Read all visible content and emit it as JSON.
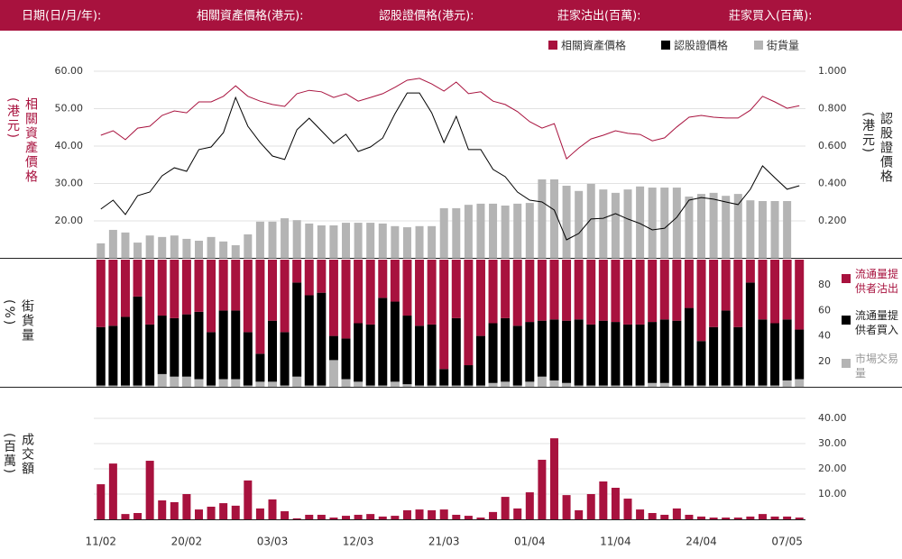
{
  "header": {
    "fields": [
      "日期(日/月/年):",
      "相關資產價格(港元):",
      "認股證價格(港元):",
      "莊家沽出(百萬):",
      "莊家買入(百萬):"
    ]
  },
  "chart_data": [
    {
      "type": "combo",
      "ylabel": "相關資產價格(港元)",
      "y2label": "認股證價格(港元)",
      "ylim": [
        10,
        60
      ],
      "yticks": [
        {
          "value": 20,
          "label": "20.00"
        },
        {
          "value": 30,
          "label": "30.00"
        },
        {
          "value": 40,
          "label": "40.00"
        },
        {
          "value": 50,
          "label": "50.00"
        },
        {
          "value": 60,
          "label": "60.00"
        }
      ],
      "y2lim": [
        0,
        1
      ],
      "y2ticks": [
        {
          "value": 0.2,
          "label": "0.200"
        },
        {
          "value": 0.4,
          "label": "0.400"
        },
        {
          "value": 0.6,
          "label": "0.600"
        },
        {
          "value": 0.8,
          "label": "0.800"
        },
        {
          "value": 1,
          "label": "1.000"
        }
      ],
      "grid": true,
      "series": [
        {
          "name": "相關資產價格",
          "type": "line",
          "axis": "y",
          "color": "#a8123e",
          "values": [
            42.9,
            44.1,
            41.7,
            44.8,
            45.3,
            48.2,
            49.4,
            48.9,
            51.8,
            51.8,
            53.3,
            56.1,
            53.3,
            52.0,
            51.1,
            50.6,
            54.0,
            54.9,
            54.5,
            53.0,
            54.0,
            52.0,
            53.0,
            54.0,
            55.7,
            57.6,
            58.1,
            56.6,
            54.7,
            57.1,
            54.0,
            54.5,
            52.0,
            51.1,
            49.2,
            46.5,
            44.8,
            46.0,
            36.6,
            39.5,
            41.9,
            42.9,
            44.1,
            43.4,
            43.1,
            41.4,
            42.2,
            45.1,
            47.7,
            48.2,
            47.7,
            47.5,
            47.5,
            49.6,
            53.3,
            51.8,
            50.1,
            50.8
          ]
        },
        {
          "name": "認股證價格",
          "type": "line",
          "axis": "y2",
          "color": "#000000",
          "values": [
            0.263,
            0.311,
            0.234,
            0.335,
            0.354,
            0.441,
            0.484,
            0.465,
            0.581,
            0.595,
            0.672,
            0.86,
            0.706,
            0.619,
            0.547,
            0.528,
            0.687,
            0.749,
            0.682,
            0.614,
            0.663,
            0.571,
            0.595,
            0.643,
            0.773,
            0.884,
            0.884,
            0.778,
            0.619,
            0.759,
            0.581,
            0.581,
            0.475,
            0.436,
            0.354,
            0.311,
            0.301,
            0.258,
            0.099,
            0.133,
            0.21,
            0.214,
            0.239,
            0.21,
            0.186,
            0.152,
            0.161,
            0.219,
            0.311,
            0.325,
            0.316,
            0.301,
            0.287,
            0.369,
            0.494,
            0.431,
            0.369,
            0.388
          ]
        },
        {
          "name": "街貨量",
          "type": "bar",
          "axis": "y",
          "color": "#b4b4b4",
          "values": [
            14.0,
            17.6,
            16.9,
            14.2,
            16.1,
            15.7,
            16.1,
            15.2,
            14.7,
            15.7,
            14.5,
            13.5,
            16.4,
            19.8,
            19.8,
            20.7,
            20.2,
            19.3,
            18.8,
            18.8,
            19.5,
            19.5,
            19.5,
            19.3,
            18.6,
            18.3,
            18.6,
            18.6,
            23.4,
            23.4,
            24.3,
            24.6,
            24.6,
            24.1,
            24.6,
            24.8,
            31.1,
            31.1,
            29.4,
            28.0,
            29.9,
            28.4,
            27.5,
            28.4,
            29.2,
            28.9,
            28.9,
            28.9,
            26.5,
            27.2,
            27.5,
            26.7,
            27.2,
            25.5,
            25.3,
            25.3,
            25.3,
            null
          ]
        }
      ]
    },
    {
      "type": "stacked-bar",
      "ylabel": "街貨量(%)",
      "ylim": [
        0,
        100
      ],
      "yticks": [
        20,
        40,
        60,
        80
      ],
      "series": [
        {
          "name": "流通量提供者沽出",
          "color": "#a8123e",
          "values": [
            53,
            52,
            45,
            29,
            51,
            44,
            46,
            43,
            41,
            57,
            40,
            40,
            57,
            74,
            48,
            57,
            18,
            28,
            26,
            60,
            62,
            50,
            51,
            30,
            33,
            44,
            52,
            51,
            86,
            46,
            83,
            60,
            50,
            46,
            52,
            49,
            48,
            47,
            48,
            47,
            51,
            48,
            49,
            51,
            51,
            49,
            47,
            48,
            38,
            64,
            53,
            40,
            53,
            18,
            47,
            50,
            47,
            55
          ]
        },
        {
          "name": "流通量提供者買入",
          "color": "#000000",
          "values": [
            46,
            47,
            54,
            70,
            48,
            46,
            46,
            49,
            53,
            42,
            54,
            54,
            42,
            22,
            48,
            42,
            74,
            71,
            73,
            19,
            32,
            46,
            48,
            69,
            63,
            54,
            47,
            48,
            13,
            53,
            16,
            39,
            47,
            50,
            47,
            47,
            44,
            48,
            49,
            52,
            48,
            51,
            50,
            48,
            48,
            48,
            50,
            51,
            61,
            35,
            46,
            59,
            46,
            81,
            52,
            49,
            48,
            39
          ]
        },
        {
          "name": "市場交易量",
          "color": "#b4b4b4",
          "values": [
            1,
            1,
            1,
            1,
            1,
            10,
            8,
            8,
            6,
            1,
            6,
            6,
            1,
            4,
            4,
            1,
            8,
            1,
            1,
            21,
            6,
            4,
            1,
            1,
            4,
            2,
            1,
            1,
            1,
            1,
            1,
            1,
            3,
            4,
            1,
            4,
            8,
            5,
            3,
            1,
            1,
            1,
            1,
            1,
            1,
            3,
            3,
            1,
            1,
            1,
            1,
            1,
            1,
            1,
            1,
            1,
            5,
            6
          ]
        }
      ]
    },
    {
      "type": "bar",
      "ylabel": "成交額(百萬)",
      "color": "#a8123e",
      "grid": true,
      "ylim": [
        0,
        40
      ],
      "yticks": [
        {
          "value": 10,
          "label": "10.00"
        },
        {
          "value": 20,
          "label": "20.00"
        },
        {
          "value": 30,
          "label": "30.00"
        },
        {
          "value": 40,
          "label": "40.00"
        }
      ],
      "categories": [
        "11/02",
        null,
        null,
        null,
        null,
        null,
        null,
        "20/02",
        null,
        null,
        null,
        null,
        null,
        null,
        "03/03",
        null,
        null,
        null,
        null,
        null,
        null,
        "12/03",
        null,
        null,
        null,
        null,
        null,
        null,
        "21/03",
        null,
        null,
        null,
        null,
        null,
        null,
        "01/04",
        null,
        null,
        null,
        null,
        null,
        null,
        "11/04",
        null,
        null,
        null,
        null,
        null,
        null,
        "24/04",
        null,
        null,
        null,
        null,
        null,
        null,
        "07/05",
        null
      ],
      "values": [
        13.9,
        22.1,
        2.1,
        2.5,
        23.2,
        7.5,
        6.8,
        10,
        3.9,
        5,
        6.4,
        5.4,
        15.4,
        4.3,
        7.9,
        3.2,
        0.4,
        1.8,
        1.8,
        0.7,
        1.4,
        1.8,
        2.1,
        1.1,
        1.4,
        3.6,
        3.9,
        3.6,
        3.9,
        1.8,
        1.4,
        0.7,
        2.9,
        8.9,
        4.3,
        10.7,
        23.6,
        32.1,
        9.6,
        3.6,
        10,
        15,
        12.5,
        8.2,
        3.9,
        2.5,
        1.8,
        4.3,
        1.8,
        1.1,
        0.7,
        0.7,
        0.7,
        1.1,
        2.1,
        1.1,
        1.1,
        0.7
      ]
    }
  ]
}
